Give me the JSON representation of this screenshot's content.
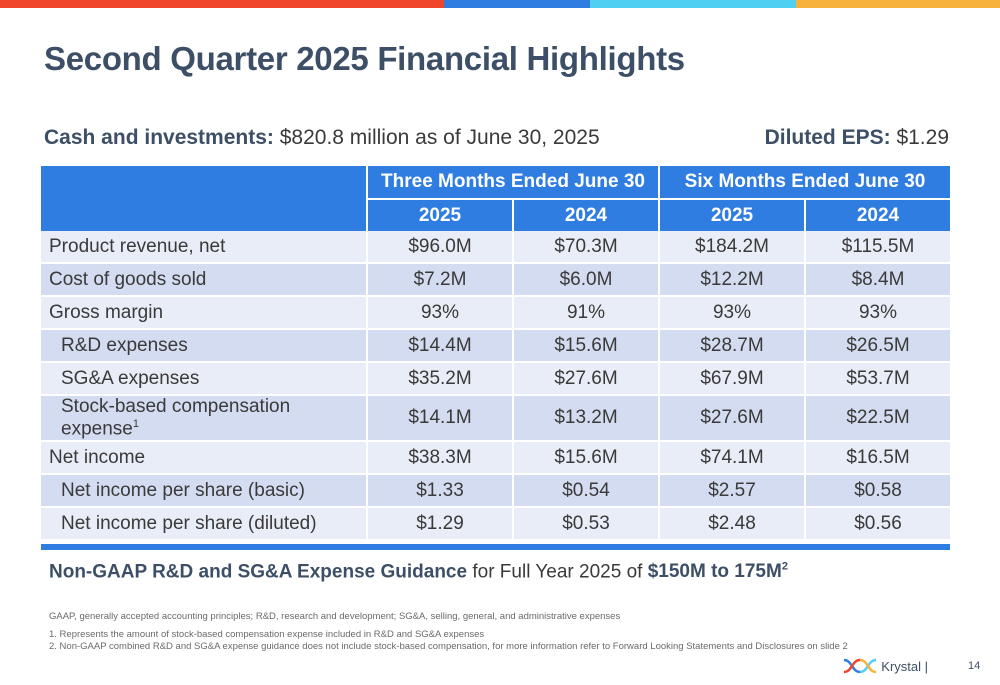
{
  "colors": {
    "bar_red": "#f0452b",
    "bar_blue": "#2f7de1",
    "bar_cyan": "#4fd0f3",
    "bar_yellow": "#f6b23c",
    "header_blue": "#2f7de1",
    "title_navy": "#3d4f66"
  },
  "title": "Second Quarter 2025 Financial Highlights",
  "summary": {
    "cash_label": "Cash and investments:",
    "cash_value": " $820.8 million as of June 30, 2025",
    "eps_label": "Diluted EPS:",
    "eps_value": " $1.29"
  },
  "table": {
    "group_headers": [
      "Three Months Ended June 30",
      "Six Months Ended June 30"
    ],
    "years": [
      "2025",
      "2024",
      "2025",
      "2024"
    ],
    "rows": [
      {
        "label": "Product revenue, net",
        "sup": "",
        "values": [
          "$96.0M",
          "$70.3M",
          "$184.2M",
          "$115.5M"
        ]
      },
      {
        "label": "Cost of goods sold",
        "sup": "",
        "values": [
          "$7.2M",
          "$6.0M",
          "$12.2M",
          "$8.4M"
        ]
      },
      {
        "label": "Gross margin",
        "sup": "",
        "values": [
          "93%",
          "91%",
          "93%",
          "93%"
        ]
      },
      {
        "label": "R&D expenses",
        "sup": "",
        "values": [
          "$14.4M",
          "$15.6M",
          "$28.7M",
          "$26.5M"
        ]
      },
      {
        "label": "SG&A expenses",
        "sup": "",
        "values": [
          "$35.2M",
          "$27.6M",
          "$67.9M",
          "$53.7M"
        ]
      },
      {
        "label": "Stock-based compensation expense",
        "sup": "1",
        "values": [
          "$14.1M",
          "$13.2M",
          "$27.6M",
          "$22.5M"
        ]
      },
      {
        "label": "Net income",
        "sup": "",
        "values": [
          "$38.3M",
          "$15.6M",
          "$74.1M",
          "$16.5M"
        ]
      },
      {
        "label": "Net income per share (basic)",
        "sup": "",
        "values": [
          "$1.33",
          "$0.54",
          "$2.57",
          "$0.58"
        ]
      },
      {
        "label": "Net income per share (diluted)",
        "sup": "",
        "values": [
          "$1.29",
          "$0.53",
          "$2.48",
          "$0.56"
        ]
      }
    ]
  },
  "guidance": {
    "bold_prefix": "Non-GAAP R&D and SG&A Expense Guidance",
    "middle": " for Full Year 2025 of ",
    "bold_value": "$150M to 175M",
    "sup": "2"
  },
  "footnotes": {
    "abbreviations": "GAAP, generally accepted accounting principles; R&D, research and development; SG&A, selling, general, and administrative expenses",
    "note1": "1. Represents the amount of stock-based compensation expense included in R&D and SG&A expenses",
    "note2": "2. Non-GAAP combined R&D and SG&A expense guidance does not include stock-based compensation, for more information refer to Forward Looking Statements and Disclosures on slide 2"
  },
  "footer": {
    "logo_text": "Krystal |",
    "page": "14"
  }
}
